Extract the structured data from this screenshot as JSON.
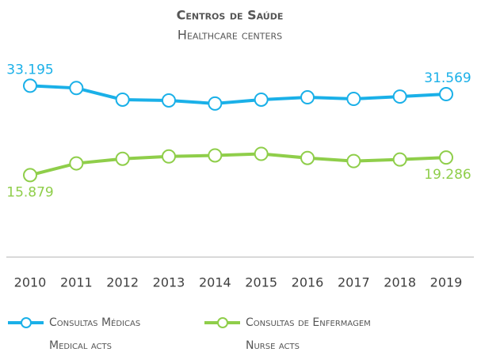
{
  "chart_data": {
    "type": "line",
    "title": "Centros de Saúde",
    "subtitle": "Healthcare centers",
    "categories": [
      "2010",
      "2011",
      "2012",
      "2013",
      "2014",
      "2015",
      "2016",
      "2017",
      "2018",
      "2019"
    ],
    "ylim": [
      0,
      40000
    ],
    "series": [
      {
        "name": "Consultas Médicas",
        "name_en": "Medical acts",
        "color": "#1ab0e8",
        "values": [
          33195,
          32750,
          30500,
          30350,
          29750,
          30500,
          30950,
          30650,
          31100,
          31569
        ],
        "value_labels": [
          "33.195",
          null,
          null,
          null,
          null,
          null,
          null,
          null,
          null,
          "31.569"
        ]
      },
      {
        "name": "Consultas de Enfermagem",
        "name_en": "Nurse acts",
        "color": "#8fce4a",
        "values": [
          15879,
          18150,
          19050,
          19500,
          19700,
          20000,
          19200,
          18600,
          18900,
          19286
        ],
        "value_labels": [
          "15.879",
          null,
          null,
          null,
          null,
          null,
          null,
          null,
          null,
          "19.286"
        ]
      }
    ]
  }
}
